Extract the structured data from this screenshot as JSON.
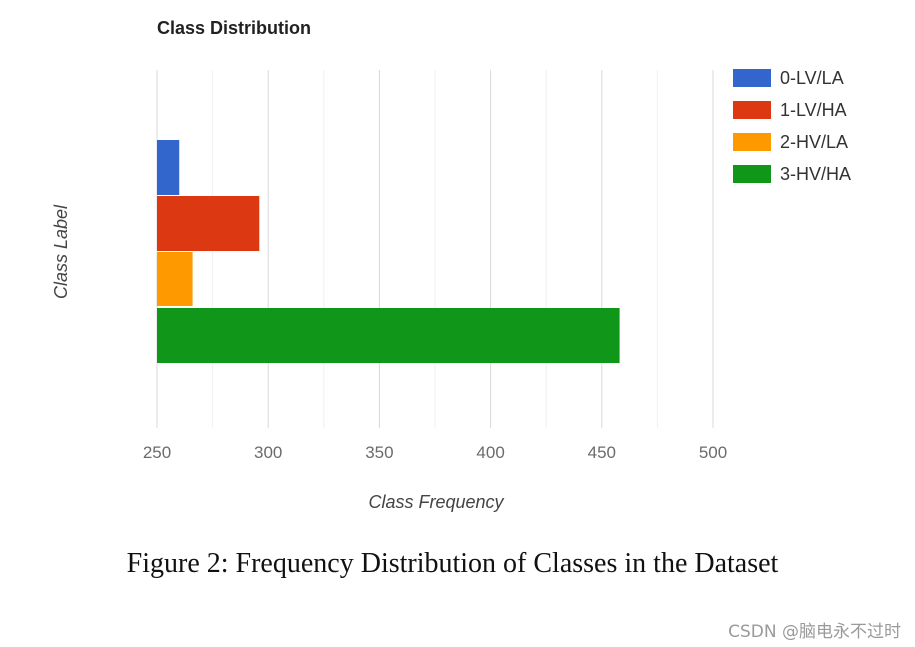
{
  "chart_data": {
    "type": "bar",
    "orientation": "horizontal",
    "title": "Class Distribution",
    "xlabel": "Class Frequency",
    "ylabel": "Class Label",
    "xlim": [
      250,
      500
    ],
    "xticks": [
      250,
      300,
      350,
      400,
      450,
      500
    ],
    "grid": true,
    "legend_position": "right",
    "categories": [
      "0-LV/LA",
      "1-LV/HA",
      "2-HV/LA",
      "3-HV/HA"
    ],
    "values": [
      260,
      296,
      266,
      458
    ],
    "colors": [
      "#3366cc",
      "#dc3912",
      "#ff9900",
      "#109618"
    ],
    "legend": [
      {
        "label": "0-LV/LA",
        "color": "#3366cc"
      },
      {
        "label": "1-LV/HA",
        "color": "#dc3912"
      },
      {
        "label": "2-HV/LA",
        "color": "#ff9900"
      },
      {
        "label": "3-HV/HA",
        "color": "#109618"
      }
    ]
  },
  "caption": "Figure 2: Frequency Distribution of Classes in the Dataset",
  "watermark": "CSDN @脑电永不过时"
}
